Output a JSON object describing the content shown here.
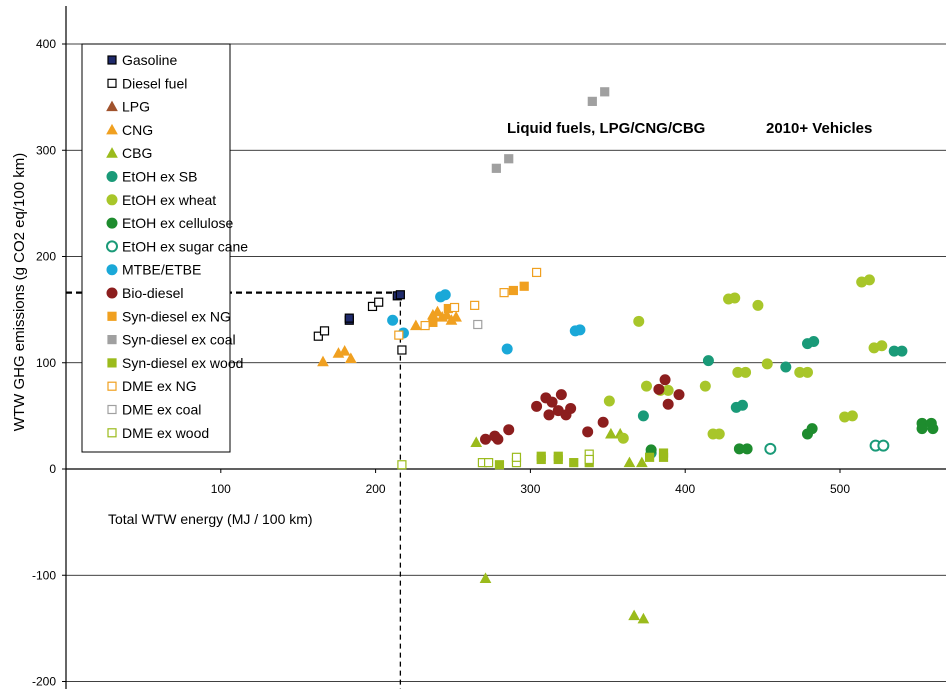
{
  "chart_data": {
    "type": "scatter",
    "ylabel": "WTW GHG emissions (g CO2 eq/100 km)",
    "xlabel": "Total WTW energy (MJ / 100 km)",
    "xlim": [
      0,
      565
    ],
    "ylim": [
      -200,
      430
    ],
    "x_ticks": [
      100,
      200,
      300,
      400,
      500
    ],
    "y_ticks": [
      -200,
      -100,
      0,
      100,
      200,
      300,
      400
    ],
    "grid": "horizontal",
    "legend_position": "top-left",
    "annotations": [
      "Liquid fuels, LPG/CNG/CBG",
      "2010+ Vehicles"
    ],
    "reference_lines": {
      "x": 216,
      "y": 166
    },
    "series": [
      {
        "name": "Gasoline",
        "marker": "square",
        "color": "#1f2a6b",
        "filled": true,
        "points": [
          [
            183,
            140
          ],
          [
            183,
            142
          ],
          [
            214,
            163
          ],
          [
            216,
            164
          ]
        ]
      },
      {
        "name": "Diesel fuel",
        "marker": "square",
        "color": "#000000",
        "filled": false,
        "points": [
          [
            163,
            125
          ],
          [
            167,
            130
          ],
          [
            198,
            153
          ],
          [
            202,
            157
          ],
          [
            217,
            112
          ]
        ]
      },
      {
        "name": "LPG",
        "marker": "triangle",
        "color": "#a0522d",
        "filled": true,
        "points": []
      },
      {
        "name": "CNG",
        "marker": "triangle",
        "color": "#f0a020",
        "filled": true,
        "points": [
          [
            166,
            101
          ],
          [
            176,
            109
          ],
          [
            180,
            111
          ],
          [
            184,
            104
          ],
          [
            226,
            135
          ],
          [
            237,
            145
          ],
          [
            240,
            148
          ],
          [
            243,
            143
          ],
          [
            246,
            145
          ],
          [
            249,
            140
          ],
          [
            252,
            143
          ]
        ]
      },
      {
        "name": "CBG",
        "marker": "triangle",
        "color": "#9bbb1c",
        "filled": true,
        "points": [
          [
            265,
            25
          ],
          [
            271,
            -103
          ],
          [
            352,
            33
          ],
          [
            358,
            33
          ],
          [
            367,
            -138
          ],
          [
            373,
            -141
          ],
          [
            364,
            6
          ],
          [
            372,
            6
          ]
        ]
      },
      {
        "name": "EtOH ex SB",
        "marker": "circle",
        "color": "#1a9a78",
        "filled": true,
        "points": [
          [
            373,
            50
          ],
          [
            378,
            15
          ],
          [
            415,
            102
          ],
          [
            433,
            58
          ],
          [
            437,
            60
          ],
          [
            465,
            96
          ],
          [
            479,
            118
          ],
          [
            483,
            120
          ],
          [
            535,
            111
          ],
          [
            540,
            111
          ]
        ]
      },
      {
        "name": "EtOH ex wheat",
        "marker": "circle",
        "color": "#a8c62a",
        "filled": true,
        "points": [
          [
            351,
            64
          ],
          [
            360,
            29
          ],
          [
            370,
            139
          ],
          [
            375,
            78
          ],
          [
            384,
            74
          ],
          [
            389,
            74
          ],
          [
            413,
            78
          ],
          [
            418,
            33
          ],
          [
            422,
            33
          ],
          [
            428,
            160
          ],
          [
            432,
            161
          ],
          [
            447,
            154
          ],
          [
            434,
            91
          ],
          [
            439,
            91
          ],
          [
            453,
            99
          ],
          [
            474,
            91
          ],
          [
            479,
            91
          ],
          [
            503,
            49
          ],
          [
            508,
            50
          ],
          [
            514,
            176
          ],
          [
            519,
            178
          ],
          [
            522,
            114
          ],
          [
            527,
            116
          ]
        ]
      },
      {
        "name": "EtOH ex cellulose",
        "marker": "circle",
        "color": "#1e8c2e",
        "filled": true,
        "points": [
          [
            378,
            18
          ],
          [
            435,
            19
          ],
          [
            440,
            19
          ],
          [
            479,
            33
          ],
          [
            482,
            38
          ],
          [
            553,
            43
          ],
          [
            559,
            43
          ],
          [
            553,
            38
          ],
          [
            560,
            38
          ]
        ]
      },
      {
        "name": "EtOH ex sugar cane",
        "marker": "circle",
        "color": "#1a9a78",
        "filled": false,
        "points": [
          [
            455,
            19
          ],
          [
            523,
            22
          ],
          [
            528,
            22
          ]
        ]
      },
      {
        "name": "MTBE/ETBE",
        "marker": "circle",
        "color": "#1aa8d8",
        "filled": true,
        "points": [
          [
            211,
            140
          ],
          [
            218,
            128
          ],
          [
            242,
            162
          ],
          [
            245,
            164
          ],
          [
            285,
            113
          ],
          [
            329,
            130
          ],
          [
            332,
            131
          ]
        ]
      },
      {
        "name": "Bio-diesel",
        "marker": "circle",
        "color": "#8c1e1e",
        "filled": true,
        "points": [
          [
            271,
            28
          ],
          [
            277,
            31
          ],
          [
            279,
            28
          ],
          [
            286,
            37
          ],
          [
            304,
            59
          ],
          [
            310,
            67
          ],
          [
            312,
            51
          ],
          [
            314,
            63
          ],
          [
            318,
            55
          ],
          [
            320,
            70
          ],
          [
            323,
            51
          ],
          [
            326,
            57
          ],
          [
            337,
            35
          ],
          [
            347,
            44
          ],
          [
            383,
            75
          ],
          [
            387,
            84
          ],
          [
            389,
            61
          ],
          [
            396,
            70
          ]
        ]
      },
      {
        "name": "Syn-diesel ex NG",
        "marker": "square",
        "color": "#f0a020",
        "filled": true,
        "points": [
          [
            237,
            138
          ],
          [
            247,
            151
          ],
          [
            289,
            168
          ],
          [
            296,
            172
          ]
        ]
      },
      {
        "name": "Syn-diesel ex coal",
        "marker": "square",
        "color": "#a0a0a0",
        "filled": true,
        "points": [
          [
            278,
            283
          ],
          [
            286,
            292
          ],
          [
            340,
            346
          ],
          [
            348,
            355
          ]
        ]
      },
      {
        "name": "Syn-diesel ex wood",
        "marker": "square",
        "color": "#9bbb1c",
        "filled": true,
        "points": [
          [
            280,
            4
          ],
          [
            307,
            9
          ],
          [
            307,
            12
          ],
          [
            318,
            9
          ],
          [
            318,
            12
          ],
          [
            328,
            6
          ],
          [
            338,
            6
          ],
          [
            377,
            11
          ],
          [
            386,
            11
          ],
          [
            386,
            15
          ]
        ]
      },
      {
        "name": "DME ex NG",
        "marker": "square",
        "color": "#f0a020",
        "filled": false,
        "points": [
          [
            215,
            126
          ],
          [
            232,
            135
          ],
          [
            251,
            152
          ],
          [
            264,
            154
          ],
          [
            283,
            166
          ],
          [
            304,
            185
          ]
        ]
      },
      {
        "name": "DME ex coal",
        "marker": "square",
        "color": "#a0a0a0",
        "filled": false,
        "points": [
          [
            266,
            136
          ]
        ]
      },
      {
        "name": "DME ex wood",
        "marker": "square",
        "color": "#9bbb1c",
        "filled": false,
        "points": [
          [
            217,
            4
          ],
          [
            269,
            6
          ],
          [
            273,
            6
          ],
          [
            291,
            6
          ],
          [
            291,
            11
          ],
          [
            338,
            14
          ],
          [
            338,
            9
          ]
        ]
      }
    ]
  }
}
